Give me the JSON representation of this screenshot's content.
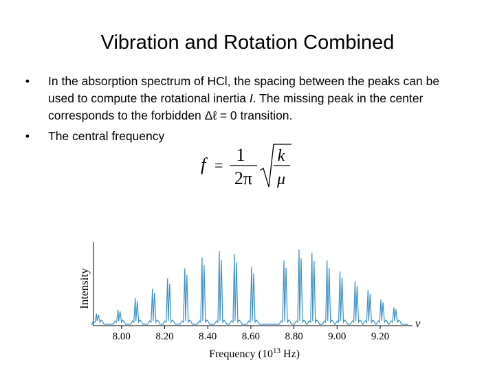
{
  "slide": {
    "title": "Vibration and Rotation Combined",
    "bullets": [
      {
        "pre": "In the absorption spectrum of HCl, the spacing between the peaks can be used to compute the rotational inertia ",
        "italic": "I",
        "post": ". The missing peak in the center corresponds to the forbidden Δℓ = 0 transition."
      },
      {
        "text": "The central frequency"
      }
    ]
  },
  "formula": {
    "lhs": "f",
    "eq": "=",
    "num": "1",
    "den": "2π",
    "rad_num": "k",
    "rad_den": "μ"
  },
  "chart_data": {
    "type": "line",
    "title": "",
    "xlabel": "Frequency (10¹³ Hz)",
    "xlabel_parts": {
      "pre": "Frequency (10",
      "sup": "13",
      "post": " Hz)"
    },
    "ylabel": "Intensity",
    "x_axis_end_label": "ν",
    "xlim": [
      7.87,
      9.35
    ],
    "xticks": [
      8.0,
      8.2,
      8.4,
      8.6,
      8.8,
      9.0,
      9.2
    ],
    "tick_labels": [
      "8.00",
      "8.20",
      "8.40",
      "8.60",
      "8.80",
      "9.00",
      "9.20"
    ],
    "line_color": "#3a8fc8",
    "peaks": [
      {
        "x": 7.89,
        "h": 0.1
      },
      {
        "x": 7.99,
        "h": 0.15
      },
      {
        "x": 8.07,
        "h": 0.3
      },
      {
        "x": 8.15,
        "h": 0.42
      },
      {
        "x": 8.22,
        "h": 0.55
      },
      {
        "x": 8.3,
        "h": 0.68
      },
      {
        "x": 8.38,
        "h": 0.82
      },
      {
        "x": 8.46,
        "h": 0.9
      },
      {
        "x": 8.53,
        "h": 0.86
      },
      {
        "x": 8.61,
        "h": 0.7
      },
      {
        "x": 8.76,
        "h": 0.78
      },
      {
        "x": 8.83,
        "h": 0.92
      },
      {
        "x": 8.89,
        "h": 0.88
      },
      {
        "x": 8.96,
        "h": 0.78
      },
      {
        "x": 9.02,
        "h": 0.64
      },
      {
        "x": 9.09,
        "h": 0.52
      },
      {
        "x": 9.15,
        "h": 0.4
      },
      {
        "x": 9.21,
        "h": 0.28
      },
      {
        "x": 9.27,
        "h": 0.18
      }
    ]
  }
}
